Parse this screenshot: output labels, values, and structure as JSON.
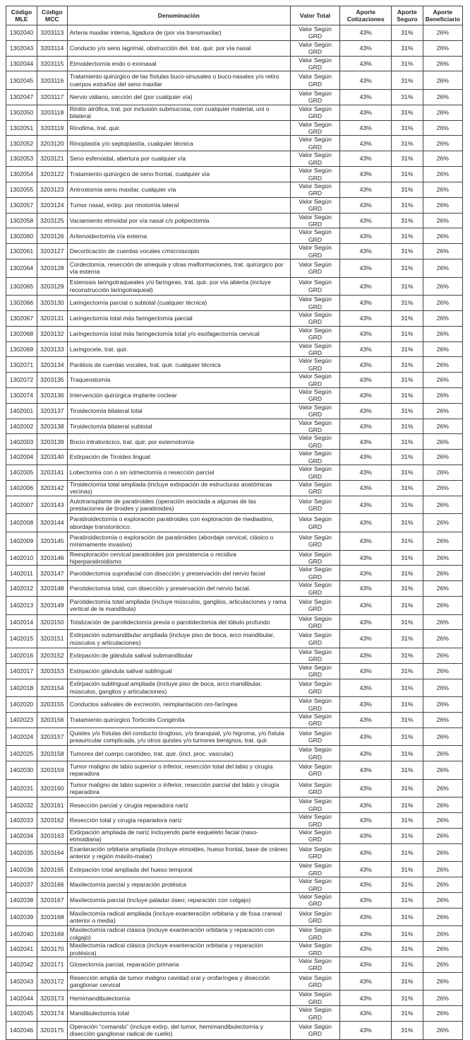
{
  "headers": [
    "Código MLE",
    "Código MCC",
    "Denominación",
    "Valor Total",
    "Aporte Cotizaciones",
    "Aporte Seguro",
    "Aporte Beneficiario"
  ],
  "common": {
    "valor_total": "Valor Según GRD",
    "aporte_cotizaciones": "43%",
    "aporte_seguro": "31%",
    "aporte_beneficiario": "26%"
  },
  "rows": [
    [
      "1302040",
      "3203113",
      "Arteria maxilar interna, ligadura de (por vía transmaxilar)"
    ],
    [
      "1302043",
      "3203114",
      "Conducto y/o seno lagrimal, obstrucción del, trat. quir. por vía nasal"
    ],
    [
      "1302044",
      "3203115",
      "Etmoidectomía endo o exonasal"
    ],
    [
      "1302045",
      "3203116",
      "Tratamiento quirúrgico de las fístulas buco-sinusales o buco-nasales y/o retiro cuerpos extraños del seno maxilar"
    ],
    [
      "1302047",
      "3203117",
      "Nervio vidiano, sección del (por cualquier vía)"
    ],
    [
      "1302050",
      "3203118",
      "Rinitis atrófica, trat. por inclusión submucosa, con cualquier material, uni o bilateral"
    ],
    [
      "1302051",
      "3203119",
      "Rinofima, trat. quir."
    ],
    [
      "1302052",
      "3203120",
      "Rinoplastía y/o septoplastía, cualquier técnica"
    ],
    [
      "1302053",
      "3203121",
      "Seno esfenoidal, abertura por cualquier vía"
    ],
    [
      "1302054",
      "3203122",
      "Tratamiento quirúrgico de seno frontal, cualquier vía"
    ],
    [
      "1302055",
      "3203123",
      "Antrostomía seno maxilar, cualquier vía"
    ],
    [
      "1302057",
      "3203124",
      "Tumor nasal, extirp. por rinotomía lateral"
    ],
    [
      "1302058",
      "3203125",
      "Vaciamiento etmoidal por vía nasal c/s polipectomía"
    ],
    [
      "1302060",
      "3203126",
      "Aritenoidectomía vía externa"
    ],
    [
      "1302061",
      "3203127",
      "Decorticación de cuerdas vocales c/microscopio"
    ],
    [
      "1302064",
      "3203128",
      "Cordectomía, resección de sinequia y otras malformaciones, trat. quirúrgico por vía externa"
    ],
    [
      "1302065",
      "3203129",
      "Estenosis laringotraqueales y/o faríngeas, trat. quir. por vía abierta (incluye reconstrucción laringotraqueal)"
    ],
    [
      "1302066",
      "3203130",
      "Laringectomía parcial o subtotal (cualquier técnica)"
    ],
    [
      "1302067",
      "3203131",
      "Laringectomía total más faringectomía parcial"
    ],
    [
      "1302068",
      "3203132",
      "Laringectomía total más faringectomía total y/o esofagectomía cervical"
    ],
    [
      "1302069",
      "3203133",
      "Laringocele, trat. quir."
    ],
    [
      "1302071",
      "3203134",
      "Parálisis de cuerdas vocales, trat. quir. cualquier técnica"
    ],
    [
      "1302072",
      "3203135",
      "Traqueostomía"
    ],
    [
      "1302074",
      "3203136",
      "Intervención quirúrgica implante coclear"
    ],
    [
      "1402001",
      "3203137",
      "Tiroidectomía bilateral total"
    ],
    [
      "1402002",
      "3203138",
      "Tiroidectomía bilateral subtotal"
    ],
    [
      "1402003",
      "3203139",
      "Bocio intratorácico, trat. quir. por esternotomía"
    ],
    [
      "1402004",
      "3203140",
      "Extirpación de Tiroides lingual"
    ],
    [
      "1402005",
      "3203141",
      "Lobectomía con o sin istmectomía o resección parcial"
    ],
    [
      "1402006",
      "3203142",
      "Tiroidectomía total ampliada (incluye extirpación de estructuras anatómicas vecinas)"
    ],
    [
      "1402007",
      "3203143",
      "Autotransplante de paratiroides (operación asociada a algunas de las prestaciones de tiroides y paratiroides)"
    ],
    [
      "1402008",
      "3203144",
      "Paratiroidectomía o exploración paratiroides con exploración de mediastino, abordaje transtorácico."
    ],
    [
      "1402009",
      "3203145",
      "Paratiroidectomía o exploración de paratiroides (abordaje cervical, clásico o mínimamente invasivo)"
    ],
    [
      "1402010",
      "3203146",
      "Reexploración cervical paratiroides por persistencia o recidiva hiperparatiroidismo"
    ],
    [
      "1402011",
      "3203147",
      "Parotidectomía suprafacial con disección y preservación del nervio facial"
    ],
    [
      "1402012",
      "3203148",
      "Parotidectomía total, con disección y preservación del nervio facial."
    ],
    [
      "1402013",
      "3203149",
      "Parotidectomía total ampliada (incluye músculos, ganglios, articulaciones y rama vertical de la mandíbula)"
    ],
    [
      "1402014",
      "3203150",
      "Totalización de parotidectomía previa o parotidectomía del lóbulo profundo"
    ],
    [
      "1402015",
      "3203151",
      "Extirpación submandibular ampliada (incluye piso de boca, arco mandibular, músculos y articulaciones)"
    ],
    [
      "1402016",
      "3203152",
      "Extirpación de glándula salival submandibular"
    ],
    [
      "1402017",
      "3203153",
      "Extirpación glándula salival sublingual"
    ],
    [
      "1402018",
      "3203154",
      "Extirpación sublingual ampliada (incluye piso de boca, arco mandibular, músculos, ganglios y articulaciones)"
    ],
    [
      "1402020",
      "3203155",
      "Conductos salivales de excreción, reimplantación oro-faríngea"
    ],
    [
      "1402023",
      "3203156",
      "Tratamiento quirúrgico Torticolis Congénita"
    ],
    [
      "1402024",
      "3203157",
      "Quistes y/o fístulas del conducto tirogloso, y/o branquial, y/o higroma, y/o fístula preauricular complicada, y/u otros quistes y/o tumores benignos, trat. quir."
    ],
    [
      "1402025",
      "3203158",
      "Tumores del cuerpo carotídeo, trat. quir. (incl. proc. vascular)"
    ],
    [
      "1402030",
      "3203159",
      "Tumor maligno de labio superior o inferior, resección total del labio y cirugía reparadora"
    ],
    [
      "1402031",
      "3203160",
      "Tumor maligno de labio superior o inferior, resección parcial del labio y cirugía reparadora"
    ],
    [
      "1402032",
      "3203161",
      "Resección parcial y cirugía reparadora nariz"
    ],
    [
      "1402033",
      "3203162",
      "Resección total y cirugía reparadora nariz"
    ],
    [
      "1402034",
      "3203163",
      "Extirpación ampliada de nariz incluyendo parte esqueleto facial (naso-etmoidiana)"
    ],
    [
      "1402035",
      "3203164",
      "Exanteración orbitaria ampliada (incluye etmoides, hueso frontal, base de cráneo anterior y región máxilo-malar)"
    ],
    [
      "1402036",
      "3203165",
      "Extirpación total ampliada del hueso temporal"
    ],
    [
      "1402037",
      "3203166",
      "Maxilectomía parcial y reparación protésica"
    ],
    [
      "1402038",
      "3203167",
      "Maxilectomía parcial (incluye paladar óseo; reparación con colgajo)"
    ],
    [
      "1402039",
      "3203168",
      "Maxilectomía radical ampliada (incluye exanteración orbitaria y de fosa craneal anterior o media)"
    ],
    [
      "1402040",
      "3203169",
      "Maxilectomía radical clásica (incluye exanteración orbitaria y reparación con colgajo)"
    ],
    [
      "1402041",
      "3203170",
      "Maxilectomía radical clásica (incluye exanteración orbitaria y reparación protésica)"
    ],
    [
      "1402042",
      "3203171",
      "Glosectomía parcial, reparación primaria"
    ],
    [
      "1402043",
      "3203172",
      "Resección amplia de tumor maligno cavidad oral y orofaríngea y disección ganglionar cervical"
    ],
    [
      "1402044",
      "3203173",
      "Hemimandibulectomía"
    ],
    [
      "1402045",
      "3203174",
      "Mandibulectomía total"
    ],
    [
      "1402046",
      "3203175",
      "Operación “comando” (incluye extirp. del tumor, hemimandibulectomía y disección ganglionar radical de cuello)"
    ]
  ]
}
